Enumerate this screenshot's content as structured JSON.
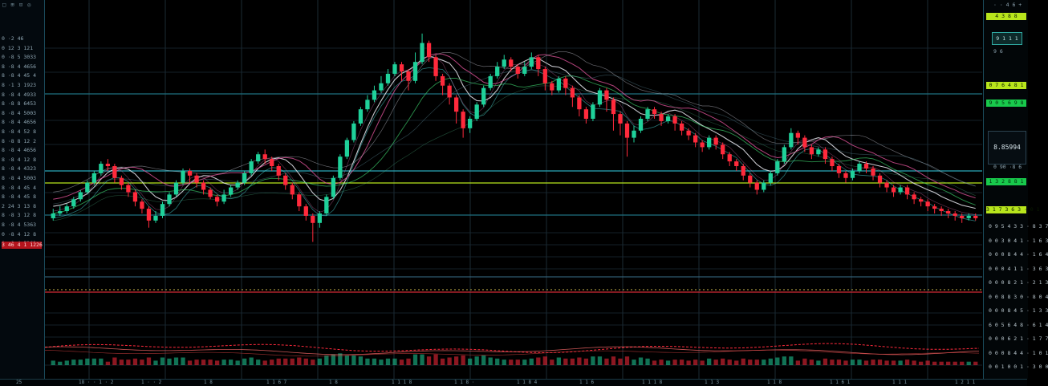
{
  "colors": {
    "bull": "#1fd19a",
    "bear": "#ff2a3c",
    "grid": "#1b2b34",
    "hline": "#1f6f7f",
    "accent_lime": "#b8e51c",
    "accent_green": "#18c94c",
    "ma_white": "#e8e8ee",
    "ma_pink": "#e0529a",
    "ma_green": "#3ccf6b",
    "ma_cyan": "#4bd6d6"
  },
  "left_panel": {
    "toolbar": "□ ⊞ ⊡ ◎",
    "rows": [
      "0 ·2 46",
      "0 12 3 121",
      "0 ·8 5 3033",
      "8 ·8 4 4656",
      "8 ·8 4 45 4",
      "8 ·1 3 1923",
      "8 ·8 4 4933",
      "8 ·8 8 6453",
      "8 ·8 4 5003",
      "8 ·8 4 4656",
      "8 ·8 4 52 8",
      "8 ·8 8 12 2",
      "8 ·8 4 4656",
      "8 ·8 4 12 8",
      "8 ·8 4 4323",
      "8 ·8 4 5003",
      "8 ·8 4 45 4",
      "8 ·8 4 45 8",
      "2 24 3 13 8",
      "8 ·8 3 12 8",
      "8 ·8 4 5363",
      "0 ·8 4 12 8",
      "0 ·8 4 5363"
    ],
    "highlight_row": "3 46 4 1 1226"
  },
  "right_panel": {
    "top": "· · 4 6 +",
    "tag_lime_1": "4 3 8 8",
    "box_1": "9 1 1 1",
    "small_1": "9 6",
    "tag_lime_2": "0 7 6 4 8 1",
    "tag_green_1": "9 0 5 6 9 8",
    "quote": "8.85994",
    "quote_sub": "0 90 ·8 6",
    "tag_green_2": "1 3 2 8 8 1",
    "tag_lime_3": "3 1 7 3 6 3 · 0 1",
    "axis_labels": [
      "0 9 5 4 3 3 · 8 3 7",
      "0 0 3 0 4 1 · 1 6 3",
      "0 0 0 8 4 4 · 1 6 4",
      "0 0 0 4 1 1 · 3 6 3",
      "0 0 0 8 2 1 · 2 1 3",
      "0 0 8 8 3 0 · 8 0 4",
      "0 0 0 8 4 5 · 1 3 3",
      "6 0 5 6 4 8 · 6 1 4",
      "0 0 0 6 2 1 · 1 7 7",
      "0 0 0 8 4 4 · 1 0 1",
      "0 0 1 0 0 1 · 3 0 0"
    ]
  },
  "bottom_bar": {
    "labels": [
      "25",
      "18 · · 1 · 2",
      "1 · · 2",
      "1 8",
      "1 1 6 7",
      "1 8",
      "1 1 1 8",
      "1 1 8 ·",
      "1 1 8 4",
      "1 1 6",
      "1 1 1 8",
      "1 1 3",
      "1 1 8",
      "1 1 6 1",
      "1 1 1",
      "1 2 1 1"
    ]
  },
  "chart_data": {
    "type": "candlestick",
    "title": "",
    "xlabel": "",
    "ylabel": "",
    "ylim": [
      0,
      100
    ],
    "grid": true,
    "candles": [
      [
        18,
        20,
        22,
        17
      ],
      [
        20,
        21,
        23,
        19
      ],
      [
        21,
        23,
        24,
        20
      ],
      [
        23,
        26,
        27,
        22
      ],
      [
        26,
        29,
        30,
        25
      ],
      [
        29,
        33,
        34,
        28
      ],
      [
        33,
        37,
        38,
        32
      ],
      [
        37,
        41,
        42,
        36
      ],
      [
        41,
        40,
        43,
        38
      ],
      [
        40,
        35,
        41,
        33
      ],
      [
        35,
        32,
        36,
        30
      ],
      [
        32,
        29,
        33,
        27
      ],
      [
        29,
        25,
        30,
        23
      ],
      [
        25,
        22,
        26,
        20
      ],
      [
        22,
        17,
        23,
        14
      ],
      [
        17,
        19,
        21,
        16
      ],
      [
        19,
        24,
        25,
        18
      ],
      [
        24,
        28,
        29,
        23
      ],
      [
        28,
        33,
        34,
        27
      ],
      [
        33,
        38,
        39,
        32
      ],
      [
        38,
        36,
        39,
        33
      ],
      [
        36,
        33,
        37,
        31
      ],
      [
        33,
        30,
        34,
        28
      ],
      [
        30,
        27,
        31,
        26
      ],
      [
        27,
        25,
        28,
        23
      ],
      [
        25,
        28,
        30,
        24
      ],
      [
        28,
        31,
        32,
        27
      ],
      [
        31,
        33,
        34,
        30
      ],
      [
        33,
        37,
        38,
        32
      ],
      [
        37,
        42,
        43,
        36
      ],
      [
        42,
        45,
        46,
        41
      ],
      [
        45,
        43,
        47,
        41
      ],
      [
        43,
        40,
        44,
        38
      ],
      [
        40,
        36,
        41,
        34
      ],
      [
        36,
        32,
        37,
        30
      ],
      [
        32,
        28,
        33,
        26
      ],
      [
        28,
        23,
        29,
        21
      ],
      [
        23,
        19,
        24,
        17
      ],
      [
        19,
        16,
        20,
        8
      ],
      [
        16,
        20,
        21,
        14
      ],
      [
        20,
        27,
        28,
        19
      ],
      [
        27,
        35,
        36,
        26
      ],
      [
        35,
        44,
        45,
        34
      ],
      [
        44,
        51,
        52,
        43
      ],
      [
        51,
        58,
        59,
        50
      ],
      [
        58,
        64,
        65,
        57
      ],
      [
        64,
        68,
        70,
        63
      ],
      [
        68,
        72,
        74,
        67
      ],
      [
        72,
        75,
        78,
        71
      ],
      [
        75,
        79,
        81,
        74
      ],
      [
        79,
        83,
        84,
        78
      ],
      [
        83,
        80,
        84,
        76
      ],
      [
        80,
        76,
        81,
        72
      ],
      [
        76,
        84,
        88,
        75
      ],
      [
        84,
        92,
        96,
        83
      ],
      [
        92,
        86,
        93,
        84
      ],
      [
        86,
        78,
        87,
        76
      ],
      [
        78,
        74,
        79,
        70
      ],
      [
        74,
        69,
        75,
        66
      ],
      [
        69,
        63,
        70,
        58
      ],
      [
        63,
        56,
        64,
        52
      ],
      [
        56,
        60,
        61,
        54
      ],
      [
        60,
        66,
        67,
        59
      ],
      [
        66,
        73,
        74,
        65
      ],
      [
        73,
        78,
        79,
        72
      ],
      [
        78,
        82,
        84,
        77
      ],
      [
        82,
        85,
        87,
        81
      ],
      [
        85,
        82,
        86,
        80
      ],
      [
        82,
        79,
        83,
        77
      ],
      [
        79,
        82,
        84,
        78
      ],
      [
        82,
        86,
        88,
        81
      ],
      [
        86,
        81,
        87,
        78
      ],
      [
        81,
        75,
        82,
        72
      ],
      [
        75,
        72,
        76,
        70
      ],
      [
        72,
        77,
        78,
        71
      ],
      [
        77,
        73,
        78,
        70
      ],
      [
        73,
        69,
        74,
        65
      ],
      [
        69,
        64,
        70,
        61
      ],
      [
        64,
        60,
        65,
        58
      ],
      [
        60,
        66,
        67,
        59
      ],
      [
        66,
        72,
        73,
        65
      ],
      [
        72,
        68,
        73,
        63
      ],
      [
        68,
        62,
        69,
        55
      ],
      [
        62,
        58,
        63,
        53
      ],
      [
        58,
        52,
        59,
        44
      ],
      [
        52,
        55,
        57,
        50
      ],
      [
        55,
        60,
        61,
        54
      ],
      [
        60,
        64,
        65,
        59
      ],
      [
        64,
        62,
        65,
        60
      ],
      [
        62,
        59,
        63,
        57
      ],
      [
        59,
        61,
        62,
        58
      ],
      [
        61,
        58,
        62,
        55
      ],
      [
        58,
        55,
        59,
        53
      ],
      [
        55,
        53,
        56,
        51
      ],
      [
        53,
        50,
        54,
        48
      ],
      [
        50,
        48,
        51,
        46
      ],
      [
        48,
        52,
        53,
        47
      ],
      [
        52,
        49,
        53,
        47
      ],
      [
        49,
        45,
        50,
        43
      ],
      [
        45,
        42,
        46,
        40
      ],
      [
        42,
        40,
        43,
        38
      ],
      [
        40,
        36,
        41,
        34
      ],
      [
        36,
        33,
        37,
        31
      ],
      [
        33,
        30,
        34,
        28
      ],
      [
        30,
        33,
        34,
        29
      ],
      [
        33,
        37,
        38,
        32
      ],
      [
        37,
        42,
        43,
        36
      ],
      [
        42,
        48,
        49,
        41
      ],
      [
        48,
        54,
        56,
        47
      ],
      [
        54,
        52,
        55,
        49
      ],
      [
        52,
        48,
        53,
        46
      ],
      [
        48,
        45,
        49,
        43
      ],
      [
        45,
        47,
        48,
        44
      ],
      [
        47,
        43,
        48,
        41
      ],
      [
        43,
        40,
        44,
        38
      ],
      [
        40,
        37,
        41,
        35
      ],
      [
        37,
        35,
        38,
        33
      ],
      [
        35,
        38,
        39,
        34
      ],
      [
        38,
        41,
        42,
        37
      ],
      [
        41,
        39,
        42,
        37
      ],
      [
        39,
        36,
        40,
        34
      ],
      [
        36,
        33,
        37,
        31
      ],
      [
        33,
        31,
        34,
        29
      ],
      [
        31,
        29,
        32,
        27
      ],
      [
        29,
        31,
        32,
        28
      ],
      [
        31,
        28,
        32,
        26
      ],
      [
        28,
        26,
        29,
        24
      ],
      [
        26,
        25,
        27,
        23
      ],
      [
        25,
        23,
        26,
        21
      ],
      [
        23,
        22,
        24,
        20
      ],
      [
        22,
        21,
        23,
        19
      ],
      [
        21,
        20,
        22,
        18
      ],
      [
        20,
        19,
        21,
        17
      ],
      [
        19,
        18,
        20,
        16
      ],
      [
        18,
        19,
        20,
        17
      ],
      [
        19,
        18,
        20,
        17
      ]
    ]
  }
}
